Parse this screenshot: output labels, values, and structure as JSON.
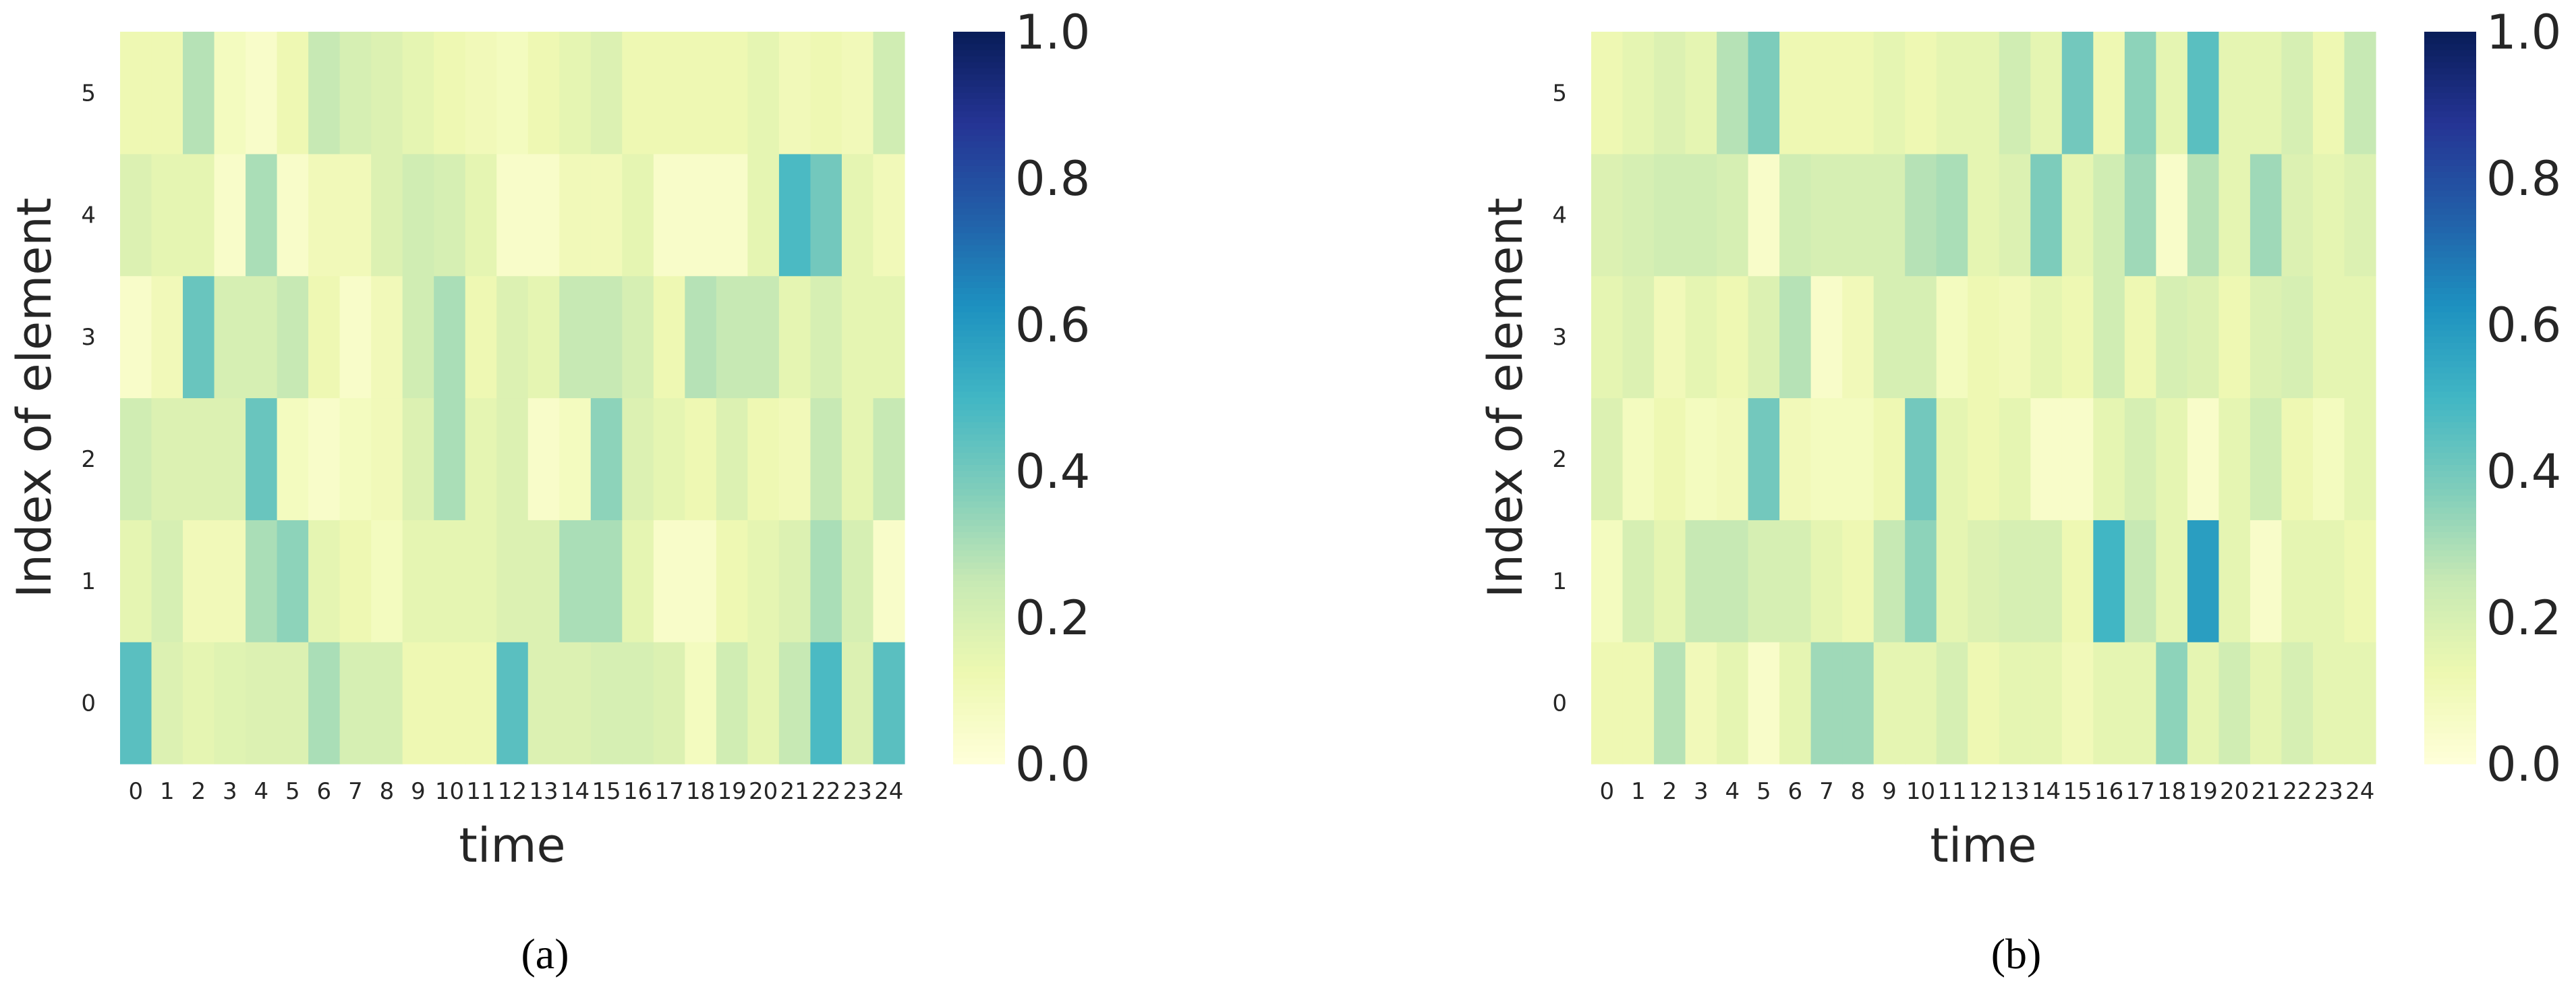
{
  "chart_data": [
    {
      "type": "heatmap",
      "caption": "(a)",
      "xlabel": "time",
      "ylabel": "Index of element",
      "x_categories": [
        "0",
        "1",
        "2",
        "3",
        "4",
        "5",
        "6",
        "7",
        "8",
        "9",
        "10",
        "11",
        "12",
        "13",
        "14",
        "15",
        "16",
        "17",
        "18",
        "19",
        "20",
        "21",
        "22",
        "23",
        "24"
      ],
      "y_categories": [
        "0",
        "1",
        "2",
        "3",
        "4",
        "5"
      ],
      "colormap": "YlGnBu",
      "colorbar": {
        "vmin": 0.0,
        "vmax": 1.0,
        "ticks": [
          "0.0",
          "0.2",
          "0.4",
          "0.6",
          "0.8",
          "1.0"
        ]
      },
      "values": [
        [
          0.45,
          0.18,
          0.15,
          0.17,
          0.18,
          0.18,
          0.3,
          0.2,
          0.2,
          0.12,
          0.12,
          0.12,
          0.45,
          0.18,
          0.18,
          0.2,
          0.2,
          0.18,
          0.08,
          0.22,
          0.15,
          0.25,
          0.48,
          0.18,
          0.45
        ],
        [
          0.15,
          0.2,
          0.1,
          0.1,
          0.3,
          0.35,
          0.15,
          0.12,
          0.08,
          0.15,
          0.15,
          0.15,
          0.18,
          0.18,
          0.3,
          0.3,
          0.15,
          0.05,
          0.05,
          0.12,
          0.15,
          0.18,
          0.3,
          0.2,
          0.05
        ],
        [
          0.22,
          0.18,
          0.18,
          0.18,
          0.42,
          0.08,
          0.05,
          0.08,
          0.1,
          0.18,
          0.3,
          0.15,
          0.18,
          0.05,
          0.08,
          0.35,
          0.18,
          0.15,
          0.12,
          0.18,
          0.12,
          0.1,
          0.25,
          0.15,
          0.25
        ],
        [
          0.05,
          0.1,
          0.42,
          0.2,
          0.2,
          0.25,
          0.12,
          0.05,
          0.1,
          0.22,
          0.3,
          0.12,
          0.18,
          0.15,
          0.25,
          0.25,
          0.2,
          0.12,
          0.28,
          0.25,
          0.25,
          0.15,
          0.2,
          0.15,
          0.15
        ],
        [
          0.18,
          0.15,
          0.15,
          0.05,
          0.3,
          0.05,
          0.1,
          0.1,
          0.18,
          0.22,
          0.2,
          0.15,
          0.05,
          0.05,
          0.1,
          0.1,
          0.15,
          0.05,
          0.05,
          0.05,
          0.15,
          0.48,
          0.4,
          0.15,
          0.1
        ],
        [
          0.12,
          0.12,
          0.28,
          0.08,
          0.05,
          0.12,
          0.25,
          0.2,
          0.18,
          0.15,
          0.12,
          0.1,
          0.08,
          0.12,
          0.15,
          0.18,
          0.12,
          0.12,
          0.12,
          0.12,
          0.15,
          0.1,
          0.12,
          0.1,
          0.22
        ]
      ]
    },
    {
      "type": "heatmap",
      "caption": "(b)",
      "xlabel": "time",
      "ylabel": "Index of element",
      "x_categories": [
        "0",
        "1",
        "2",
        "3",
        "4",
        "5",
        "6",
        "7",
        "8",
        "9",
        "10",
        "11",
        "12",
        "13",
        "14",
        "15",
        "16",
        "17",
        "18",
        "19",
        "20",
        "21",
        "22",
        "23",
        "24"
      ],
      "y_categories": [
        "0",
        "1",
        "2",
        "3",
        "4",
        "5"
      ],
      "colormap": "YlGnBu",
      "colorbar": {
        "vmin": 0.0,
        "vmax": 1.0,
        "ticks": [
          "0.0",
          "0.2",
          "0.4",
          "0.6",
          "0.8",
          "1.0"
        ]
      },
      "values": [
        [
          0.12,
          0.12,
          0.28,
          0.1,
          0.15,
          0.05,
          0.15,
          0.32,
          0.32,
          0.15,
          0.15,
          0.2,
          0.12,
          0.15,
          0.15,
          0.1,
          0.15,
          0.15,
          0.35,
          0.15,
          0.22,
          0.15,
          0.2,
          0.15,
          0.15
        ],
        [
          0.08,
          0.2,
          0.15,
          0.25,
          0.25,
          0.2,
          0.2,
          0.15,
          0.12,
          0.25,
          0.35,
          0.15,
          0.18,
          0.2,
          0.2,
          0.12,
          0.5,
          0.25,
          0.15,
          0.58,
          0.15,
          0.05,
          0.15,
          0.15,
          0.12
        ],
        [
          0.18,
          0.08,
          0.12,
          0.08,
          0.1,
          0.4,
          0.1,
          0.08,
          0.08,
          0.12,
          0.4,
          0.15,
          0.12,
          0.15,
          0.05,
          0.05,
          0.15,
          0.2,
          0.15,
          0.05,
          0.15,
          0.22,
          0.12,
          0.08,
          0.15
        ],
        [
          0.15,
          0.18,
          0.1,
          0.15,
          0.12,
          0.18,
          0.28,
          0.05,
          0.1,
          0.2,
          0.2,
          0.08,
          0.12,
          0.1,
          0.15,
          0.12,
          0.22,
          0.12,
          0.2,
          0.18,
          0.12,
          0.18,
          0.2,
          0.15,
          0.15
        ],
        [
          0.18,
          0.2,
          0.22,
          0.22,
          0.2,
          0.05,
          0.22,
          0.2,
          0.2,
          0.2,
          0.28,
          0.3,
          0.15,
          0.18,
          0.38,
          0.15,
          0.22,
          0.32,
          0.05,
          0.28,
          0.15,
          0.32,
          0.18,
          0.15,
          0.18
        ],
        [
          0.12,
          0.15,
          0.18,
          0.15,
          0.28,
          0.38,
          0.12,
          0.12,
          0.12,
          0.15,
          0.12,
          0.15,
          0.15,
          0.22,
          0.15,
          0.4,
          0.12,
          0.35,
          0.15,
          0.45,
          0.15,
          0.15,
          0.2,
          0.12,
          0.25
        ]
      ]
    }
  ]
}
